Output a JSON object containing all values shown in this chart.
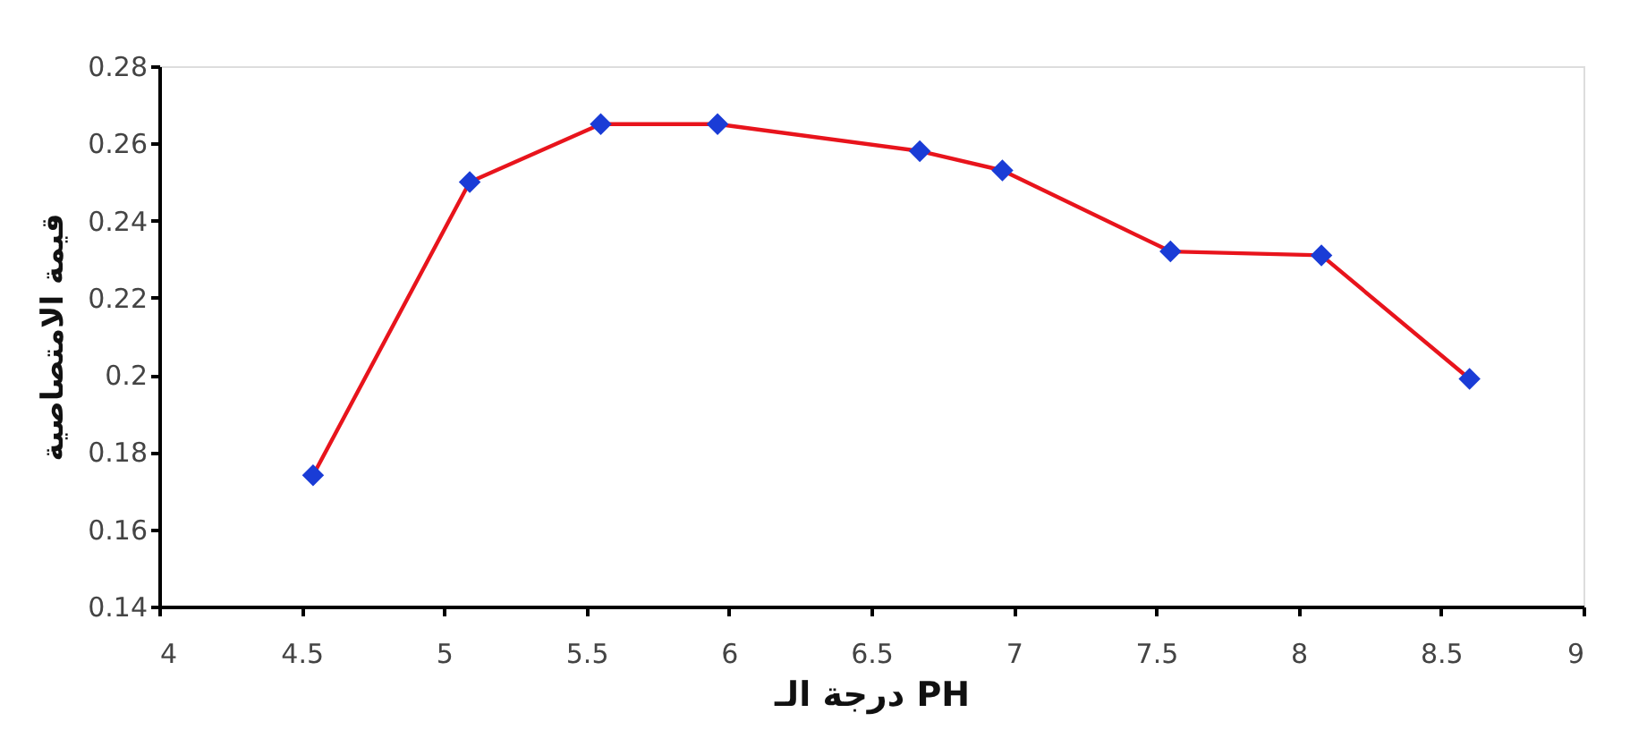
{
  "chart_data": {
    "type": "line",
    "xlabel": "درجة الـ PH",
    "ylabel": "قيمة الامتصاصية",
    "x": [
      4.54,
      5.09,
      5.55,
      5.96,
      6.67,
      6.96,
      7.55,
      8.08,
      8.6
    ],
    "series": [
      {
        "color": "#e8141c",
        "colors": [
          "#1a3cd6",
          "#1a3cd6",
          "#1a3cd6",
          "#1a3cd6",
          "#1a3cd6",
          "#1a3cd6",
          "#1a3cd6",
          "#1a3cd6",
          "#1a3cd6"
        ],
        "values": [
          0.174,
          0.25,
          0.265,
          0.265,
          0.258,
          0.253,
          0.232,
          0.231,
          0.199
        ]
      }
    ],
    "xlim": [
      4,
      9
    ],
    "xticks": [
      4,
      4.5,
      5,
      5.5,
      6,
      6.5,
      7,
      7.5,
      8,
      8.5,
      9
    ],
    "ylim": [
      0.14,
      0.28
    ],
    "yticks": [
      0.14,
      0.16,
      0.18,
      0.2,
      0.22,
      0.24,
      0.26,
      0.28
    ],
    "marker": "diamond",
    "line_style": "solid",
    "grid": false
  }
}
